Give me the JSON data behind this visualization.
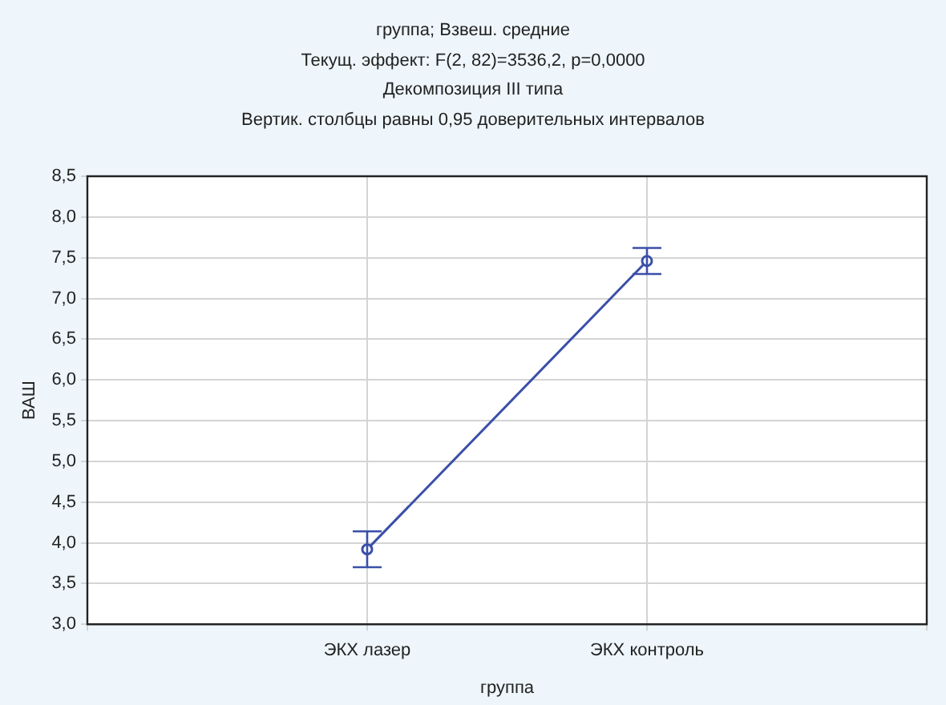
{
  "chart_data": {
    "type": "line",
    "title": "группа; Взвеш. средние",
    "subtitle": "Текущ.  эффект: F(2, 82)=3536,2, p=0,0000",
    "annotations": [
      "Декомпозиция III типа",
      "Вертик. столбцы равны 0,95 доверительных интервалов"
    ],
    "xlabel": "группа",
    "ylabel": "ВАШ",
    "categories": [
      null,
      "ЭКХ лазер",
      "ЭКХ контроль",
      null
    ],
    "series": [
      {
        "color": "#3a4fa8",
        "values": [
          null,
          3.92,
          7.46,
          null
        ],
        "errors": [
          null,
          [
            3.7,
            4.14
          ],
          [
            7.3,
            7.62
          ],
          null
        ]
      }
    ],
    "ylim": [
      3,
      8.5
    ],
    "yticks": [
      {
        "value": 3,
        "label": "3,0"
      },
      {
        "value": 3.5,
        "label": "3,5"
      },
      {
        "value": 4,
        "label": "4,0"
      },
      {
        "value": 4.5,
        "label": "4,5"
      },
      {
        "value": 5,
        "label": "5,0"
      },
      {
        "value": 5.5,
        "label": "5,5"
      },
      {
        "value": 6,
        "label": "6,0"
      },
      {
        "value": 6.5,
        "label": "6,5"
      },
      {
        "value": 7,
        "label": "7,0"
      },
      {
        "value": 7.5,
        "label": "7,5"
      },
      {
        "value": 8,
        "label": "8,0"
      },
      {
        "value": 8.5,
        "label": "8,5"
      }
    ],
    "grid": true,
    "legend": false,
    "marker": "circle",
    "line_style": "solid"
  }
}
